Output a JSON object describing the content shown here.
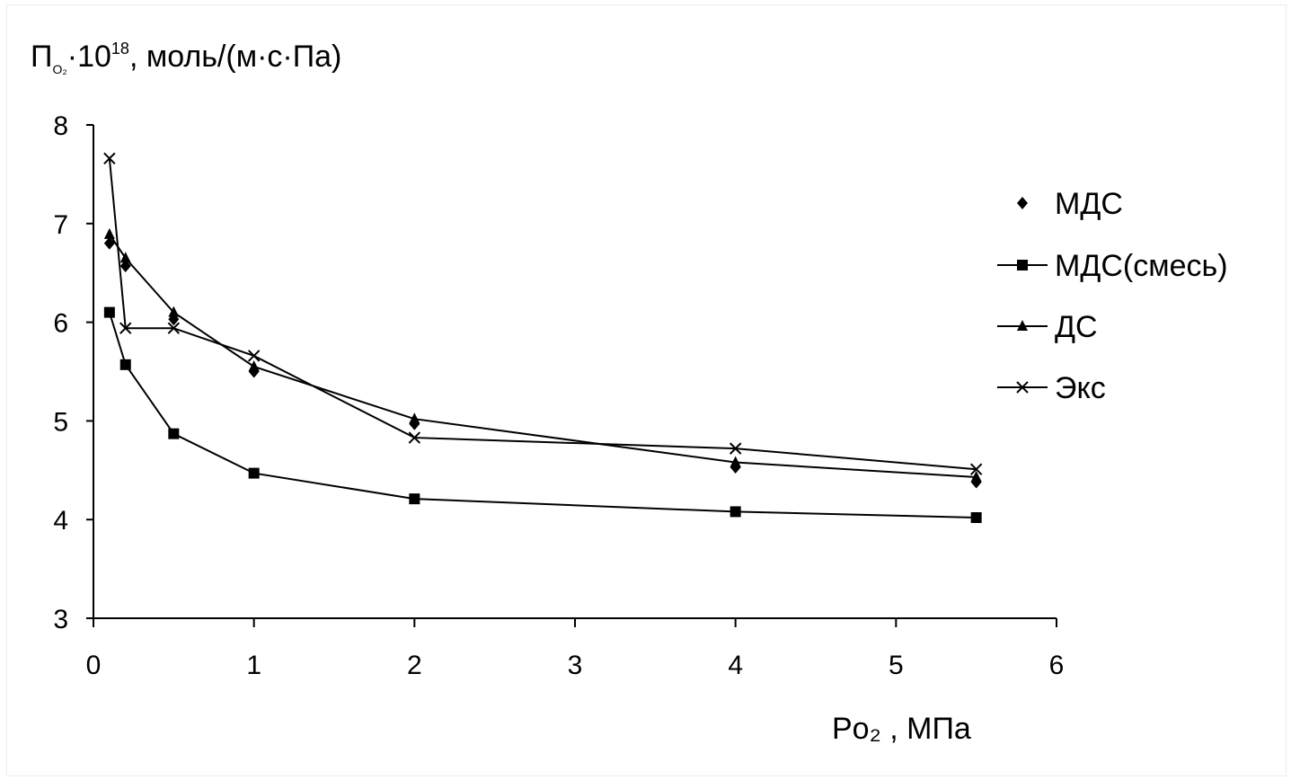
{
  "chart_data": {
    "type": "line",
    "ylabel": {
      "symbol": "П",
      "subscript": "O₂",
      "middle": "·10",
      "exponent": "18",
      "units": ", моль/(м·с·Па)"
    },
    "xlabel": {
      "symbol": "Po₂",
      "units": " , МПа"
    },
    "xlim": [
      0,
      6
    ],
    "ylim": [
      3,
      8
    ],
    "xticks": [
      "0",
      "1",
      "2",
      "3",
      "4",
      "5",
      "6"
    ],
    "yticks": [
      "3",
      "4",
      "5",
      "6",
      "7",
      "8"
    ],
    "legend_position": "right",
    "series": [
      {
        "name": "МДС",
        "marker": "diamond",
        "line": false,
        "x": [
          0.1,
          0.2,
          0.5,
          1,
          2,
          4,
          5.5
        ],
        "y": [
          6.8,
          6.57,
          6.03,
          5.5,
          4.97,
          4.53,
          4.38
        ]
      },
      {
        "name": "МДС(смесь)",
        "marker": "square",
        "line": true,
        "x": [
          0.1,
          0.2,
          0.5,
          1,
          2,
          4,
          5.5
        ],
        "y": [
          6.1,
          5.57,
          4.87,
          4.47,
          4.21,
          4.08,
          4.02
        ]
      },
      {
        "name": "ДС",
        "marker": "triangle",
        "line": true,
        "x": [
          0.1,
          0.2,
          0.5,
          1,
          2,
          4,
          5.5
        ],
        "y": [
          6.89,
          6.65,
          6.1,
          5.55,
          5.02,
          4.58,
          4.43
        ]
      },
      {
        "name": "Экс",
        "marker": "x",
        "line": true,
        "x": [
          0.1,
          0.2,
          0.5,
          1,
          2,
          4,
          5.5
        ],
        "y": [
          7.66,
          5.94,
          5.94,
          5.66,
          4.83,
          4.72,
          4.51
        ]
      }
    ]
  }
}
